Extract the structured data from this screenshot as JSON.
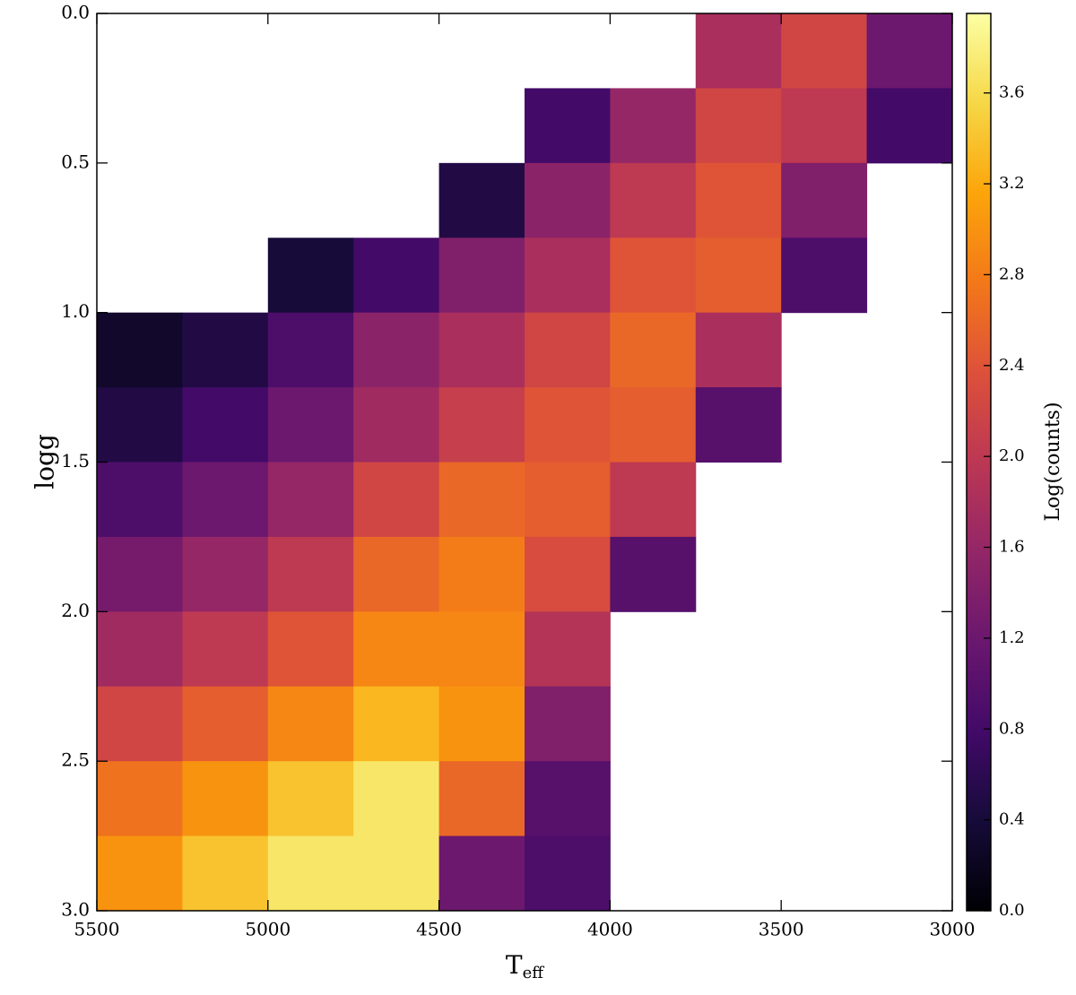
{
  "chart_data": {
    "type": "heatmap",
    "xlabel": "T",
    "xlabel_sub": "eff",
    "ylabel": "logg",
    "colorbar_label": "Log(counts)",
    "colormap": "inferno",
    "xlim": [
      5500,
      3000
    ],
    "ylim": [
      3.0,
      0.0
    ],
    "xticks": [
      5500,
      5000,
      4500,
      4000,
      3500,
      3000
    ],
    "yticks": [
      {
        "value": 0,
        "label": "0.0"
      },
      0.5,
      {
        "value": 1,
        "label": "1.0"
      },
      1.5,
      {
        "value": 2,
        "label": "2.0"
      },
      2.5,
      {
        "value": 3,
        "label": "3.0"
      }
    ],
    "clim": [
      0,
      3.95
    ],
    "cticks": [
      {
        "value": 0,
        "label": "0.0"
      },
      0.4,
      0.8,
      1.2,
      1.6,
      {
        "value": 2,
        "label": "2.0"
      },
      2.4,
      2.8,
      3.2,
      3.6
    ],
    "x_edges": [
      5500,
      5250,
      5000,
      4750,
      4500,
      4250,
      4000,
      3750,
      3500,
      3250,
      3000
    ],
    "y_edges": [
      0,
      0.25,
      0.5,
      0.75,
      1,
      1.25,
      1.5,
      1.75,
      2,
      2.25,
      2.5,
      2.75,
      3
    ],
    "values": [
      [
        null,
        null,
        null,
        null,
        null,
        null,
        null,
        1.8,
        2.2,
        1.2
      ],
      [
        null,
        null,
        null,
        null,
        null,
        0.8,
        1.6,
        2.2,
        2.0,
        0.8
      ],
      [
        null,
        null,
        null,
        null,
        0.5,
        1.5,
        2.0,
        2.4,
        1.4,
        null
      ],
      [
        null,
        null,
        0.4,
        0.8,
        1.4,
        1.8,
        2.4,
        2.5,
        0.9,
        null
      ],
      [
        0.3,
        0.5,
        0.9,
        1.5,
        1.8,
        2.2,
        2.6,
        1.8,
        null,
        null
      ],
      [
        0.5,
        0.8,
        1.2,
        1.7,
        2.1,
        2.4,
        2.5,
        1.0,
        null,
        null
      ],
      [
        0.9,
        1.2,
        1.6,
        2.2,
        2.6,
        2.5,
        2.0,
        null,
        null,
        null
      ],
      [
        1.3,
        1.6,
        2.0,
        2.6,
        2.8,
        2.3,
        1.0,
        null,
        null,
        null
      ],
      [
        1.7,
        2.0,
        2.4,
        2.9,
        2.9,
        1.9,
        null,
        null,
        null,
        null
      ],
      [
        2.2,
        2.5,
        2.9,
        3.3,
        3.0,
        1.4,
        null,
        null,
        null,
        null
      ],
      [
        2.7,
        3.0,
        3.4,
        3.7,
        2.6,
        1.0,
        null,
        null,
        null,
        null
      ],
      [
        3.0,
        3.4,
        3.7,
        3.7,
        1.2,
        0.9,
        null,
        null,
        null,
        null
      ]
    ]
  }
}
